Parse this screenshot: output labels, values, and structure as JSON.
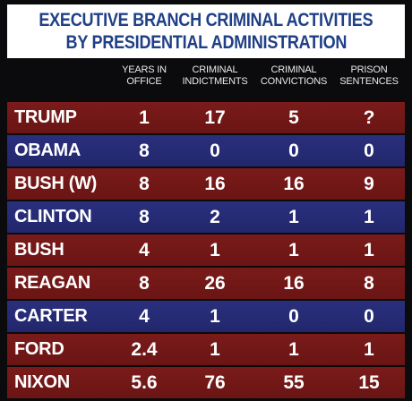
{
  "title": {
    "line1": "EXECUTIVE BRANCH CRIMINAL ACTIVITIES",
    "line2": "BY PRESIDENTIAL ADMINISTRATION"
  },
  "colors": {
    "title_text": "#1f3f86",
    "red_row": "#6f1716",
    "blue_row": "#252a73",
    "background": "#0b0b0d"
  },
  "chart_data": {
    "type": "table",
    "title": "EXECUTIVE BRANCH CRIMINAL ACTIVITIES BY PRESIDENTIAL ADMINISTRATION",
    "columns": [
      {
        "line1": "YEARS IN",
        "line2": "OFFICE"
      },
      {
        "line1": "CRIMINAL",
        "line2": "INDICTMENTS"
      },
      {
        "line1": "CRIMINAL",
        "line2": "CONVICTIONS"
      },
      {
        "line1": "PRISON",
        "line2": "SENTENCES"
      }
    ],
    "rows": [
      {
        "name": "TRUMP",
        "party": "red",
        "values": [
          "1",
          "17",
          "5",
          "?"
        ]
      },
      {
        "name": "OBAMA",
        "party": "blue",
        "values": [
          "8",
          "0",
          "0",
          "0"
        ]
      },
      {
        "name": "BUSH (W)",
        "party": "red",
        "values": [
          "8",
          "16",
          "16",
          "9"
        ]
      },
      {
        "name": "CLINTON",
        "party": "blue",
        "values": [
          "8",
          "2",
          "1",
          "1"
        ]
      },
      {
        "name": "BUSH",
        "party": "red",
        "values": [
          "4",
          "1",
          "1",
          "1"
        ]
      },
      {
        "name": "REAGAN",
        "party": "red",
        "values": [
          "8",
          "26",
          "16",
          "8"
        ]
      },
      {
        "name": "CARTER",
        "party": "blue",
        "values": [
          "4",
          "1",
          "0",
          "0"
        ]
      },
      {
        "name": "FORD",
        "party": "red",
        "values": [
          "2.4",
          "1",
          "1",
          "1"
        ]
      },
      {
        "name": "NIXON",
        "party": "red",
        "values": [
          "5.6",
          "76",
          "55",
          "15"
        ]
      }
    ]
  }
}
